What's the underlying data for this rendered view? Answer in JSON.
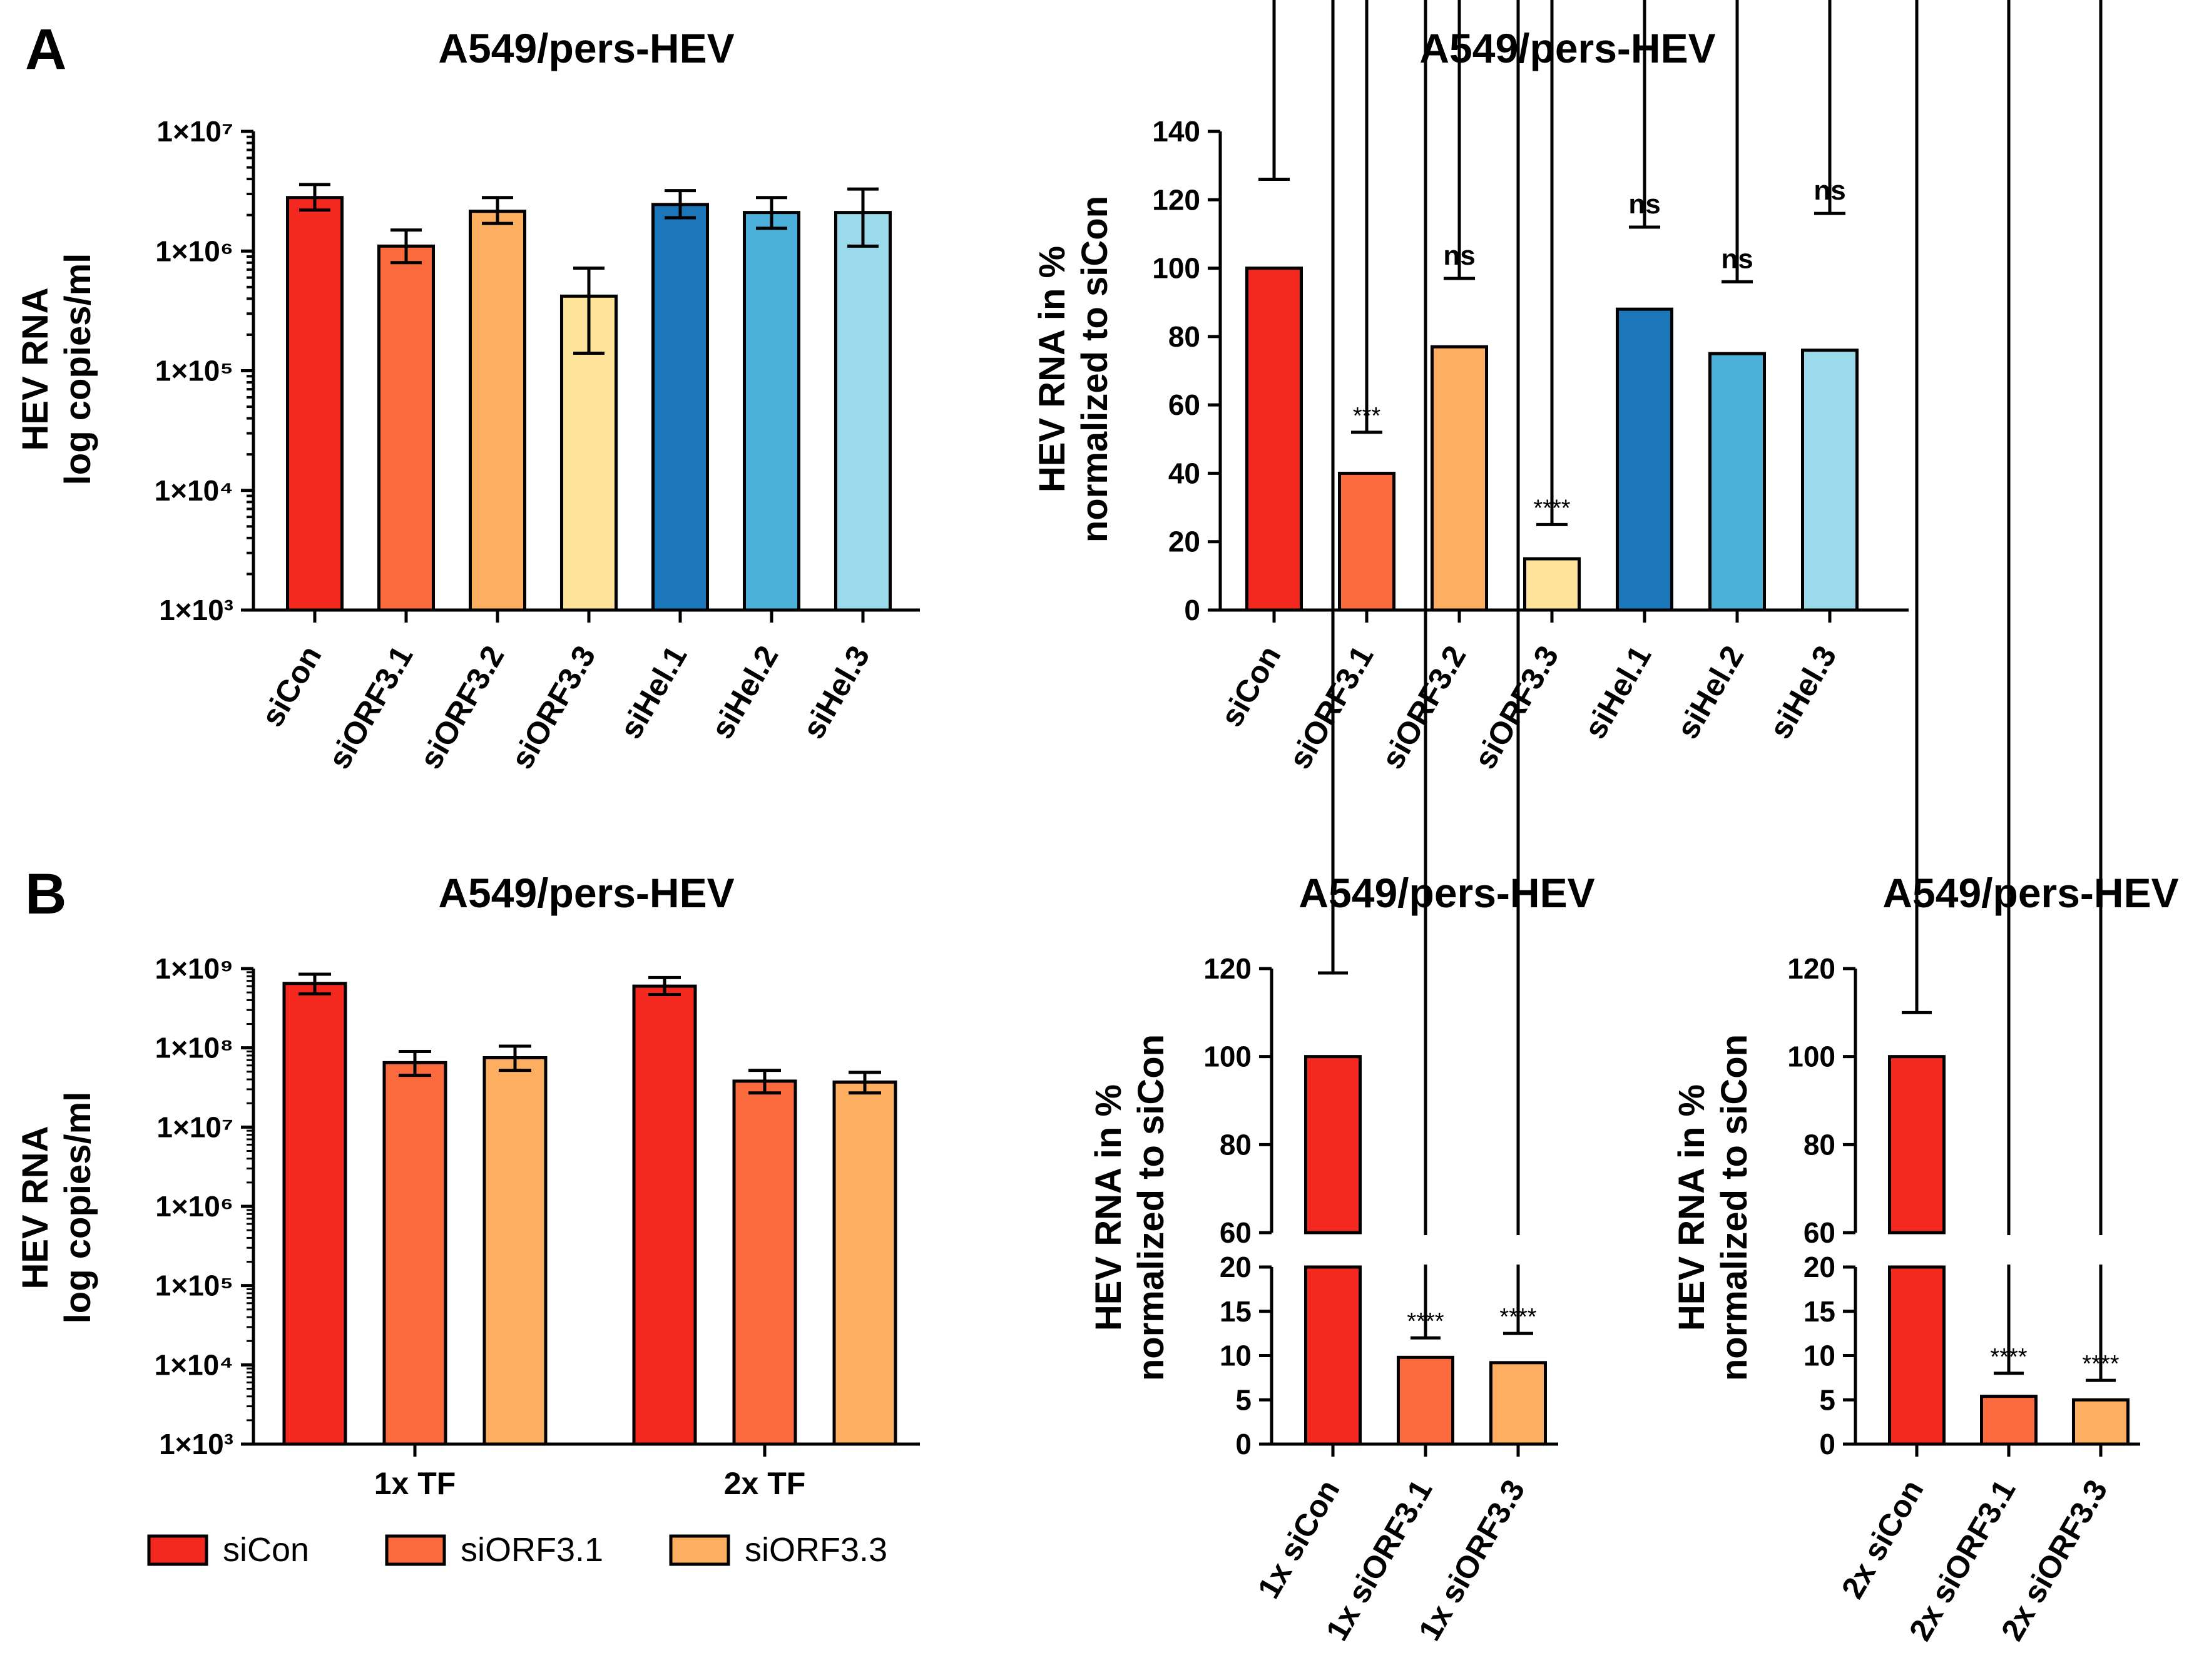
{
  "panel_labels": [
    "A",
    "B"
  ],
  "chart_data": [
    {
      "id": "A-left",
      "type": "bar",
      "title": "A549/pers-HEV",
      "ylabel_line1": "HEV RNA",
      "ylabel_line2": "log copies/ml",
      "yscale": "log",
      "ylim": [
        1000,
        10000000
      ],
      "yticks": [
        {
          "value": 1000,
          "label": "1×10³"
        },
        {
          "value": 10000,
          "label": "1×10⁴"
        },
        {
          "value": 100000,
          "label": "1×10⁵"
        },
        {
          "value": 1000000,
          "label": "1×10⁶"
        },
        {
          "value": 10000000,
          "label": "1×10⁷"
        }
      ],
      "categories": [
        "siCon",
        "siORF3.1",
        "siORF3.2",
        "siORF3.3",
        "siHel.1",
        "siHel.2",
        "siHel.3"
      ],
      "values": [
        2800000,
        1100000,
        2150000,
        420000,
        2450000,
        2100000,
        2100000
      ],
      "err_low": [
        2200000,
        800000,
        1700000,
        140000,
        1900000,
        1550000,
        1100000
      ],
      "err_high": [
        3600000,
        1500000,
        2800000,
        720000,
        3200000,
        2800000,
        3300000
      ],
      "colors": [
        "#f4281f",
        "#fa6a3c",
        "#fdae61",
        "#fde49a",
        "#1b76ba",
        "#4cb0da",
        "#9bdaea"
      ]
    },
    {
      "id": "A-right",
      "type": "bar",
      "title": "A549/pers-HEV",
      "ylabel_line1": "HEV RNA in %",
      "ylabel_line2": "normalized to siCon",
      "yscale": "linear",
      "ylim": [
        0,
        140
      ],
      "yticks": [
        0,
        20,
        40,
        60,
        80,
        100,
        120,
        140
      ],
      "categories": [
        "siCon",
        "siORF3.1",
        "siORF3.2",
        "siORF3.3",
        "siHel.1",
        "siHel.2",
        "siHel.3"
      ],
      "values": [
        100,
        40,
        77,
        15,
        88,
        75,
        76
      ],
      "err_high": [
        126,
        52,
        97,
        25,
        112,
        96,
        116
      ],
      "annotations": [
        "",
        "***",
        "ns",
        "****",
        "ns",
        "ns",
        "ns"
      ],
      "colors": [
        "#f4281f",
        "#fa6a3c",
        "#fdae61",
        "#fde49a",
        "#1b76ba",
        "#4cb0da",
        "#9bdaea"
      ]
    },
    {
      "id": "B-left",
      "type": "bar",
      "title": "A549/pers-HEV",
      "ylabel_line1": "HEV RNA",
      "ylabel_line2": "log copies/ml",
      "yscale": "log",
      "ylim": [
        1000,
        1000000000
      ],
      "yticks": [
        {
          "value": 1000,
          "label": "1×10³"
        },
        {
          "value": 10000,
          "label": "1×10⁴"
        },
        {
          "value": 100000,
          "label": "1×10⁵"
        },
        {
          "value": 1000000,
          "label": "1×10⁶"
        },
        {
          "value": 10000000,
          "label": "1×10⁷"
        },
        {
          "value": 100000000,
          "label": "1×10⁸"
        },
        {
          "value": 1000000000,
          "label": "1×10⁹"
        }
      ],
      "groups": [
        "1x TF",
        "2x TF"
      ],
      "series": [
        {
          "name": "siCon",
          "color": "#f4281f",
          "values": [
            650000000,
            600000000
          ],
          "err_low": [
            480000000,
            470000000
          ],
          "err_high": [
            850000000,
            770000000
          ]
        },
        {
          "name": "siORF3.1",
          "color": "#fa6a3c",
          "values": [
            65000000,
            38000000
          ],
          "err_low": [
            45000000,
            27000000
          ],
          "err_high": [
            90000000,
            52000000
          ]
        },
        {
          "name": "siORF3.3",
          "color": "#fdae61",
          "values": [
            75000000,
            37000000
          ],
          "err_low": [
            52000000,
            27000000
          ],
          "err_high": [
            105000000,
            49000000
          ]
        }
      ]
    },
    {
      "id": "B-middle",
      "type": "bar",
      "title": "A549/pers-HEV",
      "ylabel_line1": "HEV RNA in %",
      "ylabel_line2": "normalized to siCon",
      "yscale": "broken-linear",
      "segments": [
        {
          "range": [
            0,
            20
          ],
          "ticks": [
            0,
            5,
            10,
            15,
            20
          ]
        },
        {
          "range": [
            60,
            120
          ],
          "ticks": [
            60,
            80,
            100,
            120
          ]
        }
      ],
      "categories": [
        "1x siCon",
        "1x siORF3.1",
        "1x siORF3.3"
      ],
      "values": [
        100,
        9.8,
        9.2
      ],
      "err_high": [
        119,
        12,
        12.5
      ],
      "annotations": [
        "",
        "****",
        "****"
      ],
      "colors": [
        "#f4281f",
        "#fa6a3c",
        "#fdae61"
      ]
    },
    {
      "id": "B-right",
      "type": "bar",
      "title": "A549/pers-HEV",
      "ylabel_line1": "HEV RNA in %",
      "ylabel_line2": "normalized to siCon",
      "yscale": "broken-linear",
      "segments": [
        {
          "range": [
            0,
            20
          ],
          "ticks": [
            0,
            5,
            10,
            15,
            20
          ]
        },
        {
          "range": [
            60,
            120
          ],
          "ticks": [
            60,
            80,
            100,
            120
          ]
        }
      ],
      "categories": [
        "2x siCon",
        "2x siORF3.1",
        "2x siORF3.3"
      ],
      "values": [
        100,
        5.4,
        5.0
      ],
      "err_high": [
        110,
        8,
        7.2
      ],
      "annotations": [
        "",
        "****",
        "****"
      ],
      "colors": [
        "#f4281f",
        "#fa6a3c",
        "#fdae61"
      ]
    }
  ]
}
